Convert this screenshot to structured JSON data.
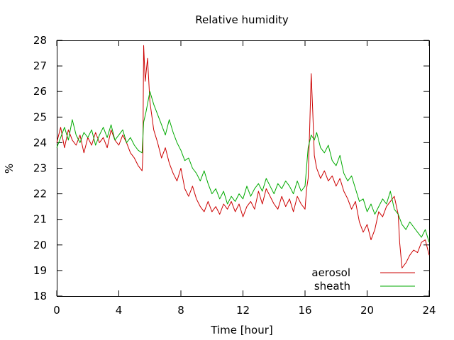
{
  "chart_data": {
    "type": "line",
    "title": "Relative humidity",
    "xlabel": "Time [hour]",
    "ylabel": "%",
    "xlim": [
      0,
      24
    ],
    "ylim": [
      18,
      28
    ],
    "xticks": [
      "0",
      "4",
      "8",
      "12",
      "16",
      "20",
      "24"
    ],
    "yticks": [
      "18",
      "19",
      "20",
      "21",
      "22",
      "23",
      "24",
      "25",
      "26",
      "27",
      "28"
    ],
    "grid": false,
    "legend_position": "bottom-right",
    "series": [
      {
        "name": "aerosol",
        "color": "#cc0000",
        "x": [
          0,
          0.25,
          0.5,
          0.75,
          1,
          1.25,
          1.5,
          1.75,
          2,
          2.25,
          2.5,
          2.75,
          3,
          3.25,
          3.5,
          3.75,
          4,
          4.25,
          4.5,
          4.75,
          5,
          5.25,
          5.5,
          5.55,
          5.6,
          5.7,
          5.85,
          6,
          6.25,
          6.5,
          6.75,
          7,
          7.25,
          7.5,
          7.75,
          8,
          8.25,
          8.5,
          8.75,
          9,
          9.25,
          9.5,
          9.75,
          10,
          10.25,
          10.5,
          10.75,
          11,
          11.25,
          11.5,
          11.75,
          12,
          12.25,
          12.5,
          12.75,
          13,
          13.25,
          13.5,
          13.75,
          14,
          14.25,
          14.5,
          14.75,
          15,
          15.25,
          15.5,
          15.75,
          16,
          16.1,
          16.2,
          16.3,
          16.4,
          16.5,
          16.6,
          16.75,
          17,
          17.25,
          17.5,
          17.75,
          18,
          18.25,
          18.5,
          18.75,
          19,
          19.25,
          19.5,
          19.75,
          20,
          20.25,
          20.5,
          20.75,
          21,
          21.25,
          21.5,
          21.75,
          22,
          22.1,
          22.25,
          22.5,
          22.75,
          23,
          23.25,
          23.5,
          23.75,
          24
        ],
        "y": [
          24,
          24.6,
          23.8,
          24.5,
          24.1,
          23.9,
          24.3,
          23.6,
          24.2,
          23.9,
          24.4,
          24,
          24.2,
          23.8,
          24.5,
          24.1,
          23.9,
          24.3,
          24,
          23.6,
          23.4,
          23.1,
          22.9,
          23.5,
          27.8,
          26.4,
          27.3,
          25.6,
          24.5,
          24,
          23.4,
          23.8,
          23.2,
          22.8,
          22.5,
          23,
          22.2,
          21.9,
          22.3,
          21.8,
          21.5,
          21.3,
          21.7,
          21.3,
          21.5,
          21.2,
          21.6,
          21.4,
          21.7,
          21.3,
          21.6,
          21.1,
          21.5,
          21.7,
          21.4,
          22.1,
          21.6,
          22.2,
          21.9,
          21.6,
          21.4,
          21.9,
          21.5,
          21.8,
          21.3,
          21.9,
          21.6,
          21.4,
          22.2,
          22.6,
          24.6,
          26.7,
          25.2,
          23.5,
          23,
          22.6,
          22.9,
          22.5,
          22.7,
          22.3,
          22.6,
          22.1,
          21.8,
          21.4,
          21.7,
          20.9,
          20.5,
          20.8,
          20.2,
          20.6,
          21.3,
          21.1,
          21.5,
          21.7,
          21.9,
          21.2,
          20.1,
          19.1,
          19.3,
          19.6,
          19.8,
          19.7,
          20.1,
          20.2,
          19.6
        ]
      },
      {
        "name": "sheath",
        "color": "#00aa00",
        "x": [
          0,
          0.25,
          0.5,
          0.75,
          1,
          1.25,
          1.5,
          1.75,
          2,
          2.25,
          2.5,
          2.75,
          3,
          3.25,
          3.5,
          3.75,
          4,
          4.25,
          4.5,
          4.75,
          5,
          5.25,
          5.5,
          5.6,
          5.75,
          6,
          6.25,
          6.5,
          6.75,
          7,
          7.25,
          7.5,
          7.75,
          8,
          8.25,
          8.5,
          8.75,
          9,
          9.25,
          9.5,
          9.75,
          10,
          10.25,
          10.5,
          10.75,
          11,
          11.25,
          11.5,
          11.75,
          12,
          12.25,
          12.5,
          12.75,
          13,
          13.25,
          13.5,
          13.75,
          14,
          14.25,
          14.5,
          14.75,
          15,
          15.25,
          15.5,
          15.75,
          16,
          16.2,
          16.4,
          16.6,
          16.75,
          17,
          17.25,
          17.5,
          17.75,
          18,
          18.25,
          18.5,
          18.75,
          19,
          19.25,
          19.5,
          19.75,
          20,
          20.25,
          20.5,
          20.75,
          21,
          21.25,
          21.5,
          21.75,
          22,
          22.25,
          22.5,
          22.75,
          23,
          23.25,
          23.5,
          23.75,
          24
        ],
        "y": [
          23.8,
          24.2,
          24.6,
          24.1,
          24.9,
          24.3,
          24,
          24.4,
          24.2,
          24.5,
          23.9,
          24.3,
          24.6,
          24.2,
          24.7,
          24.1,
          24.3,
          24.5,
          24,
          24.2,
          23.9,
          23.7,
          23.6,
          24.8,
          25.2,
          26,
          25.5,
          25.1,
          24.7,
          24.3,
          24.9,
          24.4,
          24,
          23.7,
          23.3,
          23.4,
          23,
          22.8,
          22.5,
          22.9,
          22.4,
          22,
          22.2,
          21.8,
          22.1,
          21.6,
          21.9,
          21.7,
          22,
          21.8,
          22.3,
          21.9,
          22.2,
          22.4,
          22.1,
          22.6,
          22.3,
          22,
          22.4,
          22.2,
          22.5,
          22.3,
          22,
          22.5,
          22.1,
          22.3,
          23.8,
          24.3,
          24.1,
          24.4,
          23.8,
          23.6,
          23.9,
          23.3,
          23.1,
          23.5,
          22.8,
          22.5,
          22.7,
          22.2,
          21.7,
          21.8,
          21.3,
          21.6,
          21.2,
          21.5,
          21.8,
          21.6,
          22.1,
          21.4,
          21.2,
          20.8,
          20.6,
          20.9,
          20.7,
          20.5,
          20.3,
          20.6,
          20.1
        ]
      }
    ]
  }
}
